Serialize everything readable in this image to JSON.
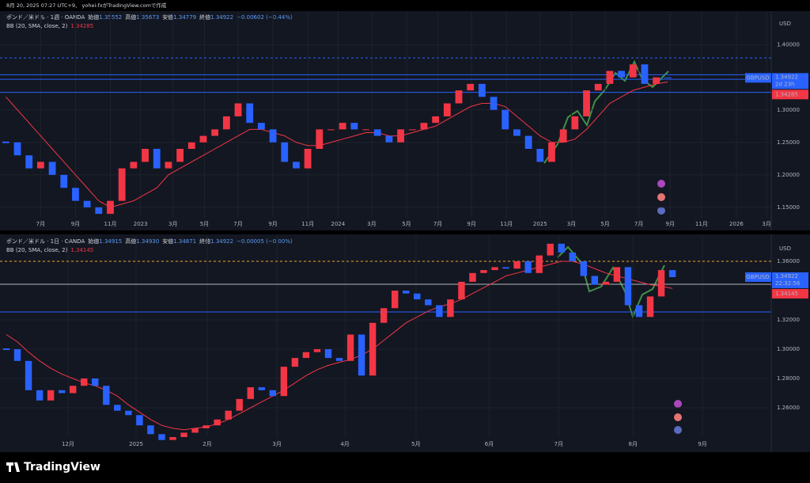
{
  "caption": "8月 20, 2025 07:27 UTC+9、 yohei-fxがTradingView.comで作成",
  "footer": "TradingView",
  "chart_data": [
    {
      "type": "candlestick",
      "title": "ポンド／米ドル · 1週 · OANDA",
      "ohlc": [
        {
          "label": "始値",
          "value": "1.35552"
        },
        {
          "label": "高値",
          "value": "1.35673"
        },
        {
          "label": "安値",
          "value": "1.34779"
        },
        {
          "label": "終値",
          "value": "1.34922"
        }
      ],
      "change": "−0.00602 (−0.44%)",
      "currency": "USD",
      "symbol": "GBPUSD",
      "up_color": "#f23645",
      "down_color": "#2962ff",
      "values": [
        1.25,
        1.23,
        1.21,
        1.22,
        1.2,
        1.18,
        1.16,
        1.15,
        1.14,
        1.16,
        1.21,
        1.22,
        1.24,
        1.21,
        1.22,
        1.24,
        1.25,
        1.26,
        1.27,
        1.29,
        1.31,
        1.28,
        1.27,
        1.25,
        1.22,
        1.21,
        1.24,
        1.27,
        1.27,
        1.28,
        1.27,
        1.27,
        1.26,
        1.25,
        1.27,
        1.27,
        1.28,
        1.29,
        1.31,
        1.33,
        1.34,
        1.32,
        1.3,
        1.27,
        1.26,
        1.24,
        1.22,
        1.25,
        1.27,
        1.29,
        1.33,
        1.34,
        1.36,
        1.35,
        1.37,
        1.34,
        1.35,
        1.3492
      ],
      "bb": {
        "name": "BB (20, SMA, close, 2)",
        "color": "#f23645",
        "label": "1.34285",
        "values": [
          1.32,
          1.3,
          1.28,
          1.26,
          1.24,
          1.22,
          1.2,
          1.18,
          1.16,
          1.15,
          1.155,
          1.16,
          1.17,
          1.18,
          1.2,
          1.21,
          1.22,
          1.23,
          1.24,
          1.25,
          1.26,
          1.27,
          1.27,
          1.265,
          1.26,
          1.25,
          1.245,
          1.245,
          1.25,
          1.255,
          1.26,
          1.265,
          1.265,
          1.26,
          1.26,
          1.265,
          1.27,
          1.275,
          1.285,
          1.295,
          1.305,
          1.31,
          1.31,
          1.305,
          1.29,
          1.275,
          1.26,
          1.25,
          1.25,
          1.255,
          1.27,
          1.29,
          1.31,
          1.32,
          1.33,
          1.335,
          1.34,
          1.3429
        ]
      },
      "last": {
        "value": 1.34922,
        "label": "1.34922"
      },
      "countdown": "2d 23h",
      "lines": [
        {
          "value": 1.38,
          "color": "#2962ff",
          "dash": true
        },
        {
          "value": 1.354,
          "color": "#2962ff",
          "dash": false
        },
        {
          "value": 1.347,
          "color": "#2962ff",
          "dash": false
        },
        {
          "value": 1.327,
          "color": "#2962ff",
          "dash": false
        }
      ],
      "xlim": [
        -0.5,
        65.9
      ],
      "ylim": [
        1.134,
        1.452
      ],
      "yticks": [
        {
          "value": 1.15,
          "label": "1.15000"
        },
        {
          "value": 1.2,
          "label": "1.20000"
        },
        {
          "value": 1.25,
          "label": "1.25000"
        },
        {
          "value": 1.3,
          "label": "1.30000"
        },
        {
          "value": 1.4,
          "label": "1.40000"
        }
      ],
      "xticks": [
        {
          "value": 3.0,
          "label": "7月"
        },
        {
          "value": 6.0,
          "label": "9月"
        },
        {
          "value": 9.0,
          "label": "11月"
        },
        {
          "value": 11.6,
          "label": "2023"
        },
        {
          "value": 14.4,
          "label": "3月"
        },
        {
          "value": 17.1,
          "label": "5月"
        },
        {
          "value": 20.0,
          "label": "7月"
        },
        {
          "value": 23.0,
          "label": "9月"
        },
        {
          "value": 26.0,
          "label": "11月"
        },
        {
          "value": 28.6,
          "label": "2024"
        },
        {
          "value": 31.5,
          "label": "3月"
        },
        {
          "value": 34.5,
          "label": "5月"
        },
        {
          "value": 37.2,
          "label": "7月"
        },
        {
          "value": 40.1,
          "label": "9月"
        },
        {
          "value": 43.1,
          "label": "11月"
        },
        {
          "value": 46.0,
          "label": "2025"
        },
        {
          "value": 48.7,
          "label": "3月"
        },
        {
          "value": 51.6,
          "label": "5月"
        },
        {
          "value": 54.5,
          "label": "7月"
        },
        {
          "value": 57.2,
          "label": "9月"
        },
        {
          "value": 59.9,
          "label": "11月"
        },
        {
          "value": 62.9,
          "label": "2026"
        },
        {
          "value": 65.5,
          "label": "3月"
        }
      ],
      "grid": true
    },
    {
      "type": "candlestick",
      "title": "ポンド／米ドル · 1日 · OANDA",
      "ohlc": [
        {
          "label": "始値",
          "value": "1.34915"
        },
        {
          "label": "高値",
          "value": "1.34930"
        },
        {
          "label": "安値",
          "value": "1.34871"
        },
        {
          "label": "終値",
          "value": "1.34922"
        }
      ],
      "change": "−0.00005 (−0.00%)",
      "currency": "USD",
      "symbol": "GBPUSD",
      "up_color": "#f23645",
      "down_color": "#2962ff",
      "values": [
        1.3,
        1.292,
        1.272,
        1.265,
        1.272,
        1.27,
        1.275,
        1.28,
        1.275,
        1.262,
        1.258,
        1.255,
        1.248,
        1.242,
        1.238,
        1.24,
        1.243,
        1.246,
        1.248,
        1.252,
        1.258,
        1.266,
        1.274,
        1.272,
        1.268,
        1.288,
        1.294,
        1.298,
        1.3,
        1.294,
        1.292,
        1.31,
        1.282,
        1.318,
        1.328,
        1.34,
        1.338,
        1.334,
        1.33,
        1.322,
        1.334,
        1.346,
        1.352,
        1.354,
        1.356,
        1.355,
        1.36,
        1.352,
        1.364,
        1.372,
        1.366,
        1.36,
        1.35,
        1.344,
        1.346,
        1.356,
        1.33,
        1.322,
        1.336,
        1.354,
        1.3492
      ],
      "bb": {
        "name": "BB (20, SMA, close, 2)",
        "color": "#f23645",
        "label": "1.34145",
        "values": [
          1.31,
          1.305,
          1.298,
          1.292,
          1.287,
          1.283,
          1.28,
          1.277,
          1.275,
          1.272,
          1.268,
          1.262,
          1.257,
          1.252,
          1.248,
          1.246,
          1.245,
          1.246,
          1.247,
          1.249,
          1.252,
          1.256,
          1.26,
          1.264,
          1.268,
          1.272,
          1.277,
          1.282,
          1.286,
          1.289,
          1.291,
          1.293,
          1.296,
          1.3,
          1.306,
          1.312,
          1.318,
          1.322,
          1.326,
          1.329,
          1.331,
          1.334,
          1.338,
          1.342,
          1.346,
          1.35,
          1.352,
          1.354,
          1.356,
          1.358,
          1.36,
          1.36,
          1.358,
          1.355,
          1.352,
          1.35,
          1.348,
          1.346,
          1.344,
          1.343,
          1.3415
        ]
      },
      "last": {
        "value": 1.34922,
        "label": "1.34922"
      },
      "countdown": "22:32:56",
      "lines": [
        {
          "value": 1.36,
          "color": "#f5a623",
          "dash": true
        },
        {
          "value": 1.3443,
          "color": "#b2b5be",
          "dash": false
        },
        {
          "value": 1.3254,
          "color": "#2962ff",
          "dash": false
        }
      ],
      "xlim": [
        -0.57,
        68.9
      ],
      "ylim": [
        1.24,
        1.3773
      ],
      "yticks": [
        {
          "value": 1.26,
          "label": "1.26000"
        },
        {
          "value": 1.28,
          "label": "1.28000"
        },
        {
          "value": 1.3,
          "label": "1.30000"
        },
        {
          "value": 1.32,
          "label": "1.32000"
        },
        {
          "value": 1.36,
          "label": "1.36000"
        }
      ],
      "xticks": [
        {
          "value": 5.56,
          "label": "12月"
        },
        {
          "value": 11.69,
          "label": "2025"
        },
        {
          "value": 18.1,
          "label": "2月"
        },
        {
          "value": 24.38,
          "label": "3月"
        },
        {
          "value": 30.5,
          "label": "4月"
        },
        {
          "value": 36.9,
          "label": "5月"
        },
        {
          "value": 43.5,
          "label": "6月"
        },
        {
          "value": 49.75,
          "label": "7月"
        },
        {
          "value": 56.45,
          "label": "8月"
        },
        {
          "value": 62.7,
          "label": "9月"
        }
      ],
      "grid": true
    }
  ]
}
